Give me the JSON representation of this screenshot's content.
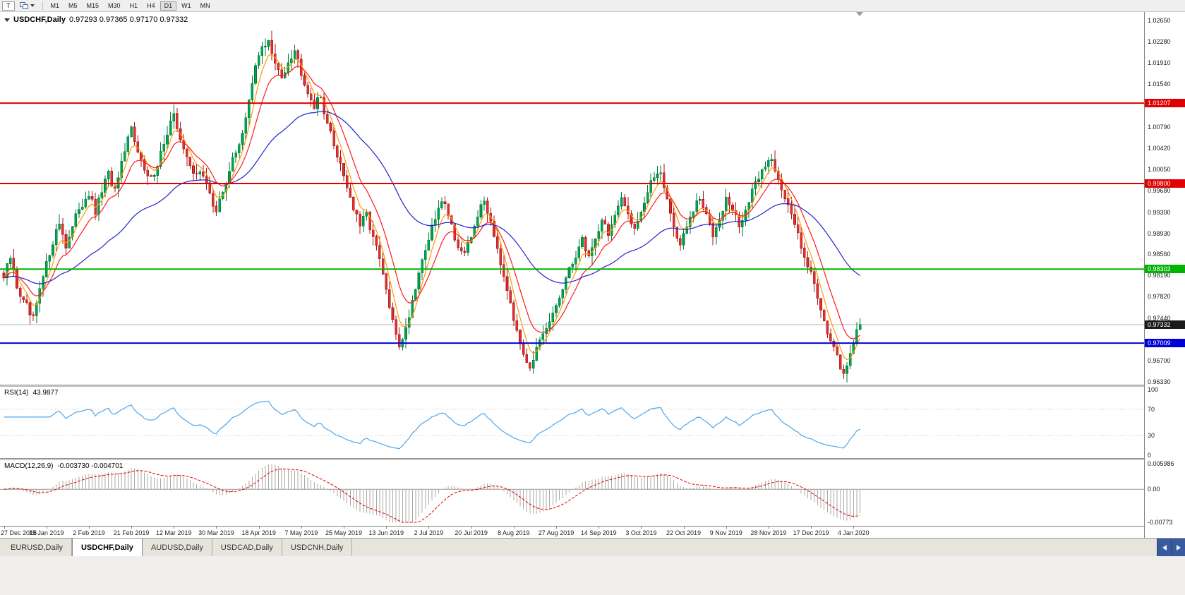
{
  "toolbar": {
    "tool_button_label": "T",
    "timeframes": [
      "M1",
      "M5",
      "M15",
      "M30",
      "H1",
      "H4",
      "D1",
      "W1",
      "MN"
    ],
    "active_timeframe": "D1"
  },
  "icons": {
    "chart_menu": "triangle-down",
    "charts_cascade": "cascade-windows",
    "chevron": "caret-down",
    "tab_scroll_left": "arrow-left",
    "tab_scroll_right": "arrow-right"
  },
  "chart": {
    "symbol_label": "USDCHF,Daily",
    "ohlc": "0.97293 0.97365 0.97170 0.97332",
    "price_axis_ticks": [
      "1.02650",
      "1.02280",
      "1.01910",
      "1.01540",
      "1.00790",
      "1.00420",
      "1.00050",
      "0.99680",
      "0.99300",
      "0.98930",
      "0.98560",
      "0.98190",
      "0.97820",
      "0.97440",
      "0.96700",
      "0.96330"
    ],
    "levels": [
      {
        "price": 1.01207,
        "label": "1.01207",
        "color": "#e00000",
        "type": "resistance"
      },
      {
        "price": 0.998,
        "label": "0.99800",
        "color": "#e00000",
        "type": "resistance"
      },
      {
        "price": 0.98303,
        "label": "0.98303",
        "color": "#00b400",
        "type": "support"
      },
      {
        "price": 0.97009,
        "label": "0.97009",
        "color": "#0000d8",
        "type": "support"
      }
    ],
    "current_price": {
      "value": 0.97332,
      "label": "0.97332",
      "badge_color": "#1a1a1a",
      "line_color": "#b5b5b5"
    }
  },
  "rsi_panel": {
    "label": "RSI(14)",
    "value": "43.9877",
    "ticks": [
      "100",
      "70",
      "30",
      "0"
    ],
    "level_lines": [
      70,
      30
    ],
    "line_color": "#4da6e8",
    "range": [
      0,
      100
    ]
  },
  "macd_panel": {
    "label": "MACD(12,26,9)",
    "values": "-0.003730 -0.004701",
    "ticks": [
      "0.005986",
      "0.00",
      "-0.00773"
    ],
    "range": [
      -0.00773,
      0.005986
    ],
    "histogram_color": "#a8a8a8",
    "signal_color": "#e00000"
  },
  "date_axis": [
    "27 Dec 2018",
    "15 Jan 2019",
    "2 Feb 2019",
    "21 Feb 2019",
    "12 Mar 2019",
    "30 Mar 2019",
    "18 Apr 2019",
    "7 May 2019",
    "25 May 2019",
    "13 Jun 2019",
    "2 Jul 2019",
    "20 Jul 2019",
    "8 Aug 2019",
    "27 Aug 2019",
    "14 Sep 2019",
    "3 Oct 2019",
    "22 Oct 2019",
    "9 Nov 2019",
    "28 Nov 2019",
    "17 Dec 2019",
    "4 Jan 2020"
  ],
  "tabs": [
    {
      "label": "EURUSD,Daily",
      "active": false
    },
    {
      "label": "USDCHF,Daily",
      "active": true
    },
    {
      "label": "AUDUSD,Daily",
      "active": false
    },
    {
      "label": "USDCAD,Daily",
      "active": false
    },
    {
      "label": "USDCNH,Daily",
      "active": false
    }
  ],
  "chart_data": {
    "type": "candlestick",
    "symbol": "USDCHF",
    "period": "Daily",
    "ohlc_current": {
      "open": 0.97293,
      "high": 0.97365,
      "low": 0.9717,
      "close": 0.97332
    },
    "bars": 263,
    "bars_per_date_tick": 13,
    "ylim": [
      0.9627,
      1.028
    ],
    "candle_colors": {
      "up": "#00a550",
      "up_border": "#00763a",
      "down": "#e03030",
      "down_border": "#a31616"
    },
    "moving_averages": [
      {
        "name": "fast",
        "period": 5,
        "color": "#ff9900"
      },
      {
        "name": "medium",
        "period": 11,
        "color": "#ff1a1a"
      },
      {
        "name": "slow",
        "period": 45,
        "color": "#2222cc"
      }
    ],
    "rsi": {
      "period": 14,
      "current": 43.9877
    },
    "macd": {
      "fast": 12,
      "slow": 26,
      "signal": 9,
      "current": -0.00373,
      "current_signal": -0.004701
    },
    "close_anchors": [
      [
        0,
        0.9815
      ],
      [
        2,
        0.985
      ],
      [
        4,
        0.98
      ],
      [
        6,
        0.9772
      ],
      [
        9,
        0.9742
      ],
      [
        11,
        0.9792
      ],
      [
        13,
        0.9838
      ],
      [
        15,
        0.988
      ],
      [
        17,
        0.9912
      ],
      [
        19,
        0.9872
      ],
      [
        21,
        0.9902
      ],
      [
        23,
        0.9938
      ],
      [
        26,
        0.9962
      ],
      [
        28,
        0.9928
      ],
      [
        30,
        0.9968
      ],
      [
        32,
        0.9996
      ],
      [
        34,
        0.9966
      ],
      [
        36,
        1.0012
      ],
      [
        39,
        1.0076
      ],
      [
        41,
        1.0042
      ],
      [
        43,
        0.9999
      ],
      [
        45,
        0.9986
      ],
      [
        47,
        1.0016
      ],
      [
        49,
        1.0052
      ],
      [
        52,
        1.0096
      ],
      [
        54,
        1.0062
      ],
      [
        56,
        1.0022
      ],
      [
        58,
        0.9996
      ],
      [
        60,
        1.0006
      ],
      [
        62,
        0.9976
      ],
      [
        65,
        0.9931
      ],
      [
        67,
        0.9966
      ],
      [
        69,
        1.0006
      ],
      [
        71,
        1.0032
      ],
      [
        73,
        1.0072
      ],
      [
        75,
        1.0122
      ],
      [
        77,
        1.0182
      ],
      [
        79,
        1.0221
      ],
      [
        81,
        1.0228
      ],
      [
        83,
        1.0186
      ],
      [
        85,
        1.0166
      ],
      [
        87,
        1.0196
      ],
      [
        89,
        1.0214
      ],
      [
        91,
        1.0176
      ],
      [
        93,
        1.0142
      ],
      [
        95,
        1.0116
      ],
      [
        97,
        1.0131
      ],
      [
        99,
        1.0086
      ],
      [
        101,
        1.0046
      ],
      [
        103,
        1.0016
      ],
      [
        105,
        0.9976
      ],
      [
        107,
        0.9936
      ],
      [
        109,
        0.9906
      ],
      [
        111,
        0.9926
      ],
      [
        113,
        0.9886
      ],
      [
        115,
        0.9846
      ],
      [
        117,
        0.9792
      ],
      [
        119,
        0.9736
      ],
      [
        121,
        0.9698
      ],
      [
        123,
        0.9726
      ],
      [
        125,
        0.9776
      ],
      [
        127,
        0.9826
      ],
      [
        129,
        0.9866
      ],
      [
        131,
        0.9901
      ],
      [
        133,
        0.9936
      ],
      [
        135,
        0.9951
      ],
      [
        137,
        0.9906
      ],
      [
        139,
        0.9869
      ],
      [
        141,
        0.9853
      ],
      [
        143,
        0.9886
      ],
      [
        145,
        0.9926
      ],
      [
        147,
        0.9949
      ],
      [
        149,
        0.9916
      ],
      [
        151,
        0.9869
      ],
      [
        153,
        0.9821
      ],
      [
        155,
        0.9776
      ],
      [
        157,
        0.9716
      ],
      [
        159,
        0.9686
      ],
      [
        161,
        0.9661
      ],
      [
        163,
        0.9689
      ],
      [
        165,
        0.9711
      ],
      [
        167,
        0.9736
      ],
      [
        169,
        0.9766
      ],
      [
        171,
        0.9796
      ],
      [
        173,
        0.9826
      ],
      [
        175,
        0.9856
      ],
      [
        177,
        0.9881
      ],
      [
        179,
        0.9853
      ],
      [
        181,
        0.9883
      ],
      [
        183,
        0.9919
      ],
      [
        185,
        0.9893
      ],
      [
        187,
        0.9923
      ],
      [
        189,
        0.9949
      ],
      [
        191,
        0.9929
      ],
      [
        193,
        0.9903
      ],
      [
        195,
        0.9933
      ],
      [
        197,
        0.9963
      ],
      [
        199,
        0.9993
      ],
      [
        201,
        1.0003
      ],
      [
        203,
        0.9953
      ],
      [
        205,
        0.9903
      ],
      [
        207,
        0.9873
      ],
      [
        209,
        0.9903
      ],
      [
        211,
        0.9933
      ],
      [
        213,
        0.9953
      ],
      [
        215,
        0.9923
      ],
      [
        217,
        0.9893
      ],
      [
        219,
        0.9923
      ],
      [
        221,
        0.9953
      ],
      [
        223,
        0.9933
      ],
      [
        225,
        0.9906
      ],
      [
        227,
        0.9933
      ],
      [
        229,
        0.9963
      ],
      [
        231,
        0.9993
      ],
      [
        233,
        1.0013
      ],
      [
        235,
        1.0023
      ],
      [
        237,
        0.9993
      ],
      [
        239,
        0.9953
      ],
      [
        241,
        0.9923
      ],
      [
        243,
        0.9893
      ],
      [
        245,
        0.9856
      ],
      [
        247,
        0.9823
      ],
      [
        249,
        0.9783
      ],
      [
        251,
        0.9743
      ],
      [
        253,
        0.9703
      ],
      [
        255,
        0.9673
      ],
      [
        257,
        0.9646
      ],
      [
        259,
        0.9686
      ],
      [
        261,
        0.9719
      ],
      [
        262,
        0.9733
      ]
    ]
  }
}
